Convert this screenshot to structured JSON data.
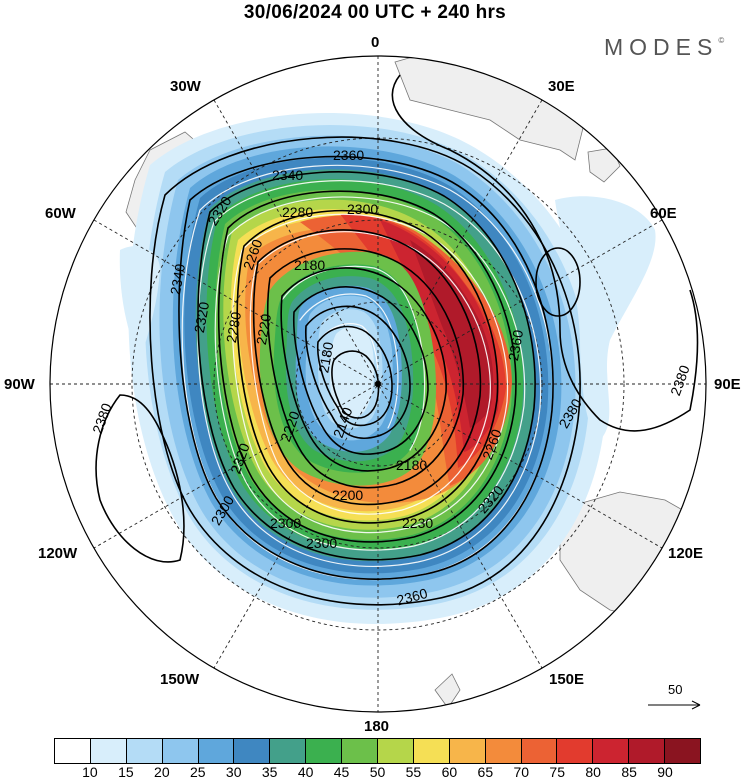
{
  "title": "30/06/2024  00 UTC  + 240 hrs",
  "logo": "MODES",
  "logo_mark": "©",
  "longitude_labels": {
    "0": "0",
    "30E": "30E",
    "60E": "60E",
    "90E": "90E",
    "120E": "120E",
    "150E": "150E",
    "180": "180",
    "150W": "150W",
    "120W": "120W",
    "90W": "90W",
    "60W": "60W",
    "30W": "30W"
  },
  "contour_labels": [
    "2360",
    "2340",
    "2320",
    "2300",
    "2280",
    "2260",
    "2180",
    "2160",
    "2140",
    "2200",
    "2220",
    "2380"
  ],
  "wind_reference": {
    "value": "50"
  },
  "colorbar": {
    "colors": [
      "#ffffff",
      "#d8eefb",
      "#b4dcf6",
      "#8ec6ee",
      "#5fa7dc",
      "#3f87c1",
      "#43a08a",
      "#3bb04f",
      "#6cc04a",
      "#b5d64a",
      "#f5df55",
      "#f7b54a",
      "#f38b3b",
      "#ec6234",
      "#e23b2e",
      "#cc2430",
      "#b01a2a",
      "#8a1420"
    ],
    "ticks": [
      "10",
      "15",
      "20",
      "25",
      "30",
      "35",
      "40",
      "45",
      "50",
      "55",
      "60",
      "65",
      "70",
      "75",
      "80",
      "85",
      "90"
    ]
  }
}
